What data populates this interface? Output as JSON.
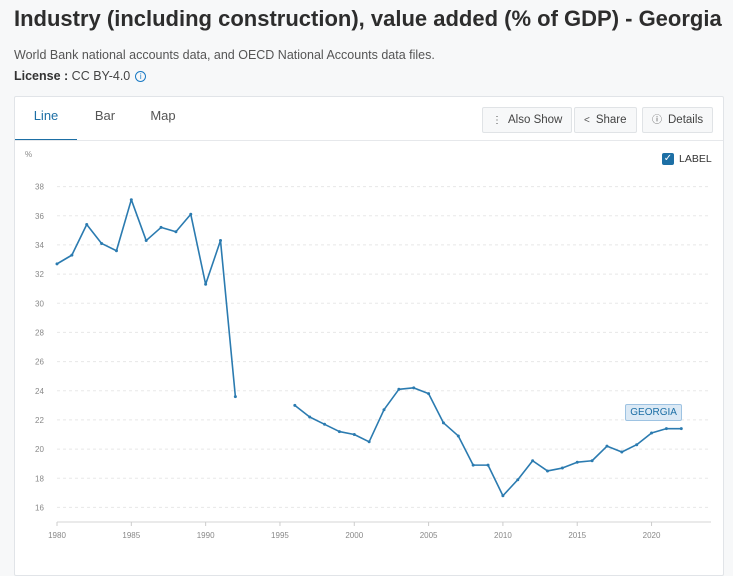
{
  "header": {
    "title": "Industry (including construction), value added (% of GDP) - Georgia",
    "source": "World Bank national accounts data, and OECD National Accounts data files.",
    "license_label": "License :",
    "license_value": " CC BY-4.0",
    "info_icon": "info-icon"
  },
  "tabs": [
    {
      "label": "Line",
      "active": true
    },
    {
      "label": "Bar",
      "active": false
    },
    {
      "label": "Map",
      "active": false
    }
  ],
  "toolbar": {
    "also_show": "Also Show",
    "share": "Share",
    "details": "Details",
    "icons": [
      "more-vertical-icon",
      "share-icon",
      "info-icon"
    ]
  },
  "legend": {
    "checkbox_label": "LABEL",
    "checked": true
  },
  "colors": {
    "accent": "#1d6fa5",
    "series": "#2b7bb0"
  },
  "chart_data": {
    "type": "line",
    "ylabel": "%",
    "ylim": [
      15,
      39
    ],
    "yticks": [
      16,
      18,
      20,
      22,
      24,
      26,
      28,
      30,
      32,
      34,
      36,
      38
    ],
    "xlim": [
      1980,
      2024
    ],
    "xticks": [
      1980,
      1985,
      1990,
      1995,
      2000,
      2005,
      2010,
      2015,
      2020
    ],
    "grid": true,
    "series": [
      {
        "name": "GEORGIA",
        "x": [
          1980,
          1981,
          1982,
          1983,
          1984,
          1985,
          1986,
          1987,
          1988,
          1989,
          1990,
          1991,
          1992,
          1993,
          1994,
          1995,
          1996,
          1997,
          1998,
          1999,
          2000,
          2001,
          2002,
          2003,
          2004,
          2005,
          2006,
          2007,
          2008,
          2009,
          2010,
          2011,
          2012,
          2013,
          2014,
          2015,
          2016,
          2017,
          2018,
          2019,
          2020,
          2021,
          2022
        ],
        "values": [
          32.7,
          33.3,
          35.4,
          34.1,
          33.6,
          37.1,
          34.3,
          35.2,
          34.9,
          36.1,
          31.3,
          34.3,
          23.6,
          null,
          null,
          null,
          23.0,
          22.2,
          21.7,
          21.2,
          21.0,
          20.5,
          22.7,
          24.1,
          24.2,
          23.8,
          21.8,
          20.9,
          18.9,
          18.9,
          16.8,
          17.9,
          19.2,
          18.5,
          18.7,
          19.1,
          19.2,
          20.2,
          19.8,
          20.3,
          21.1,
          21.4,
          21.4
        ]
      }
    ]
  }
}
